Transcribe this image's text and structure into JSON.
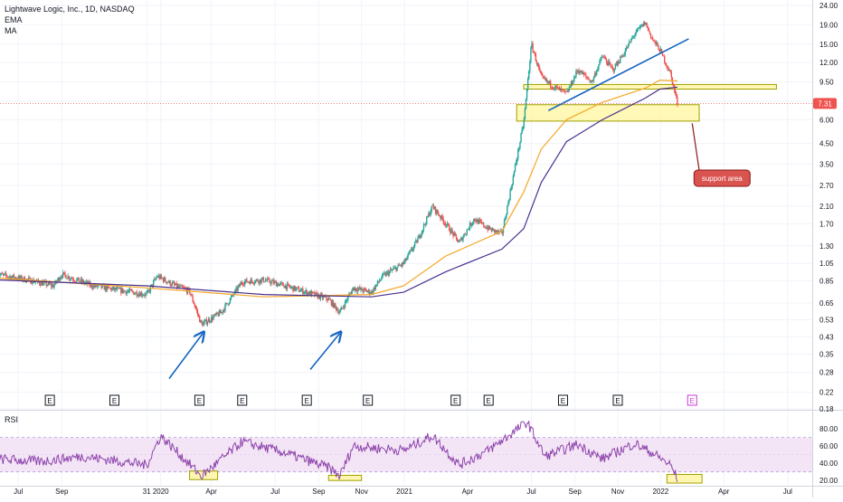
{
  "legend": {
    "title": "Lightwave Logic, Inc., 1D, NASDAQ",
    "indicator_1": "EMA",
    "indicator_2": "MA"
  },
  "rsi_label": "RSI",
  "colors": {
    "price_up": "#26a69a",
    "price_down": "#ef5350",
    "ema": "#f5a623",
    "ma": "#4a2f8f",
    "trendline": "#1565c0",
    "arrows": "#1565c0",
    "zone_fill": "#fff59d",
    "zone_stroke": "#a0a000",
    "rsi_line": "#8e44ad",
    "rsi_band": "#f3e5f5",
    "current_price_tag": "#ef5350",
    "callout_fill": "#d9534f",
    "earnings_marker_future": "#c83cd4"
  },
  "chart_data": [
    {
      "type": "candlestick",
      "title": "Lightwave Logic, Inc., 1D, NASDAQ",
      "y_scale": "log",
      "ylim": [
        0.18,
        24.0
      ],
      "y_ticks": [
        "24.00",
        "19.00",
        "15.00",
        "12.00",
        "9.50",
        "7.50",
        "6.00",
        "4.50",
        "3.50",
        "2.70",
        "2.10",
        "1.70",
        "1.30",
        "1.05",
        "0.85",
        "0.65",
        "0.53",
        "0.43",
        "0.35",
        "0.28",
        "0.22",
        "0.18"
      ],
      "x_ticks": [
        "Jul",
        "Sep",
        "31",
        "2020",
        "Apr",
        "Jul",
        "Sep",
        "Nov",
        "2021",
        "Apr",
        "Jul",
        "Sep",
        "Nov",
        "2022",
        "Apr",
        "Jul"
      ],
      "current_price": "7.31",
      "price_path": [
        [
          "2019-06-01",
          0.92
        ],
        [
          "2019-07-15",
          0.86
        ],
        [
          "2019-08-20",
          0.8
        ],
        [
          "2019-09-01",
          0.92
        ],
        [
          "2019-10-15",
          0.8
        ],
        [
          "2019-12-01",
          0.75
        ],
        [
          "2019-12-31",
          0.72
        ],
        [
          "2020-01-15",
          0.9
        ],
        [
          "2020-02-10",
          0.8
        ],
        [
          "2020-03-01",
          0.75
        ],
        [
          "2020-03-18",
          0.5
        ],
        [
          "2020-04-15",
          0.58
        ],
        [
          "2020-05-15",
          0.84
        ],
        [
          "2020-06-15",
          0.86
        ],
        [
          "2020-07-15",
          0.8
        ],
        [
          "2020-08-15",
          0.74
        ],
        [
          "2020-09-15",
          0.68
        ],
        [
          "2020-10-01",
          0.58
        ],
        [
          "2020-10-20",
          0.78
        ],
        [
          "2020-11-15",
          0.74
        ],
        [
          "2020-12-01",
          0.9
        ],
        [
          "2020-12-31",
          1.05
        ],
        [
          "2021-01-20",
          1.4
        ],
        [
          "2021-02-10",
          2.1
        ],
        [
          "2021-03-01",
          1.7
        ],
        [
          "2021-03-20",
          1.35
        ],
        [
          "2021-04-10",
          1.8
        ],
        [
          "2021-05-01",
          1.6
        ],
        [
          "2021-05-20",
          1.5
        ],
        [
          "2021-06-05",
          3.0
        ],
        [
          "2021-06-20",
          5.8
        ],
        [
          "2021-07-01",
          15.0
        ],
        [
          "2021-07-15",
          10.0
        ],
        [
          "2021-08-01",
          9.0
        ],
        [
          "2021-08-20",
          8.2
        ],
        [
          "2021-09-05",
          11.0
        ],
        [
          "2021-09-25",
          9.5
        ],
        [
          "2021-10-10",
          13.0
        ],
        [
          "2021-10-25",
          11.0
        ],
        [
          "2021-11-10",
          13.5
        ],
        [
          "2021-11-25",
          17.0
        ],
        [
          "2021-12-10",
          19.5
        ],
        [
          "2021-12-20",
          16.0
        ],
        [
          "2021-12-31",
          14.0
        ],
        [
          "2022-01-15",
          10.5
        ],
        [
          "2022-01-25",
          7.31
        ]
      ],
      "ema_path": [
        [
          "2019-06-01",
          0.88
        ],
        [
          "2019-12-31",
          0.78
        ],
        [
          "2020-06-15",
          0.7
        ],
        [
          "2020-11-15",
          0.72
        ],
        [
          "2020-12-31",
          0.8
        ],
        [
          "2021-03-01",
          1.15
        ],
        [
          "2021-05-20",
          1.55
        ],
        [
          "2021-06-20",
          2.5
        ],
        [
          "2021-07-15",
          4.2
        ],
        [
          "2021-08-20",
          6.0
        ],
        [
          "2021-10-10",
          7.4
        ],
        [
          "2021-12-10",
          8.8
        ],
        [
          "2021-12-31",
          9.7
        ],
        [
          "2022-01-25",
          9.6
        ]
      ],
      "ma_path": [
        [
          "2019-06-01",
          0.86
        ],
        [
          "2019-12-31",
          0.8
        ],
        [
          "2020-06-15",
          0.72
        ],
        [
          "2020-11-15",
          0.7
        ],
        [
          "2020-12-31",
          0.74
        ],
        [
          "2021-03-01",
          0.95
        ],
        [
          "2021-05-20",
          1.25
        ],
        [
          "2021-06-20",
          1.6
        ],
        [
          "2021-07-15",
          2.8
        ],
        [
          "2021-08-20",
          4.6
        ],
        [
          "2021-10-10",
          6.0
        ],
        [
          "2021-12-10",
          7.8
        ],
        [
          "2021-12-31",
          8.7
        ],
        [
          "2022-01-25",
          8.9
        ]
      ],
      "annotations": {
        "support_label": "support area",
        "zones": [
          {
            "from": "2021-06-10",
            "to": "2022-02-25",
            "low": 5.9,
            "high": 7.2
          },
          {
            "from": "2021-06-20",
            "to": "2022-06-15",
            "low": 8.7,
            "high": 9.2
          }
        ],
        "trendline": {
          "from": [
            "2021-07-25",
            6.7
          ],
          "to": [
            "2022-02-10",
            16.0
          ]
        },
        "arrows": [
          {
            "from": [
              "2020-02-01",
              0.26
            ],
            "to": [
              "2020-03-20",
              0.45
            ]
          },
          {
            "from": [
              "2020-08-20",
              0.29
            ],
            "to": [
              "2020-10-01",
              0.45
            ]
          }
        ]
      },
      "earnings_markers": {
        "label": "E",
        "dates": [
          "2019-08-15",
          "2019-11-15",
          "2020-03-15",
          "2020-05-15",
          "2020-08-15",
          "2020-11-10",
          "2021-03-15",
          "2021-05-01",
          "2021-08-15",
          "2021-11-01",
          "2022-02-15"
        ]
      }
    },
    {
      "type": "line",
      "title": "RSI",
      "ylim": [
        16,
        98
      ],
      "y_ticks": [
        "80.00",
        "60.00",
        "40.00",
        "20.00"
      ],
      "band": [
        30,
        70
      ],
      "values_path": [
        [
          "2019-06-01",
          45
        ],
        [
          "2019-08-01",
          42
        ],
        [
          "2019-10-01",
          48
        ],
        [
          "2019-12-31",
          38
        ],
        [
          "2020-01-20",
          72
        ],
        [
          "2020-03-18",
          25
        ],
        [
          "2020-05-15",
          65
        ],
        [
          "2020-07-15",
          52
        ],
        [
          "2020-09-15",
          35
        ],
        [
          "2020-10-01",
          25
        ],
        [
          "2020-10-20",
          60
        ],
        [
          "2020-12-31",
          55
        ],
        [
          "2021-02-10",
          72
        ],
        [
          "2021-03-20",
          38
        ],
        [
          "2021-05-01",
          55
        ],
        [
          "2021-06-25",
          88
        ],
        [
          "2021-07-20",
          48
        ],
        [
          "2021-09-05",
          62
        ],
        [
          "2021-10-10",
          45
        ],
        [
          "2021-11-25",
          63
        ],
        [
          "2021-12-20",
          52
        ],
        [
          "2022-01-15",
          38
        ],
        [
          "2022-01-25",
          22
        ]
      ],
      "highlight_boxes": [
        {
          "from": "2020-03-01",
          "to": "2020-04-10",
          "low": 21,
          "high": 31
        },
        {
          "from": "2020-09-15",
          "to": "2020-11-01",
          "low": 20,
          "high": 26
        },
        {
          "from": "2022-01-10",
          "to": "2022-03-01",
          "low": 17,
          "high": 27
        }
      ]
    }
  ]
}
